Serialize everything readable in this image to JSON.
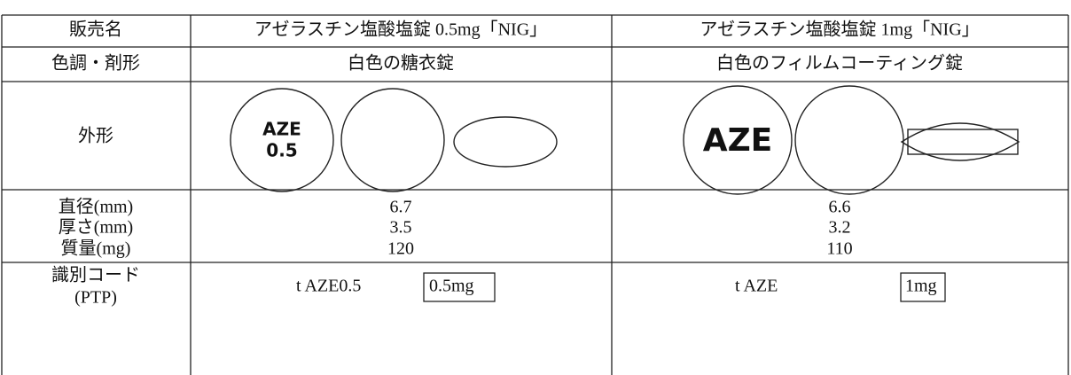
{
  "table": {
    "header": [
      "販売名",
      "アゼラスチン塩酸塩錠 0.5mg「NIG」",
      "アゼラスチン塩酸塩錠 1mg「NIG」"
    ],
    "color_form": {
      "label": "色調・剤形",
      "values": [
        "白色の糖衣錠",
        "白色のフィルムコーティング錠"
      ]
    },
    "shape": {
      "label": "外形",
      "engravings": [
        [
          "AZE",
          "0.5"
        ],
        [
          "AZE"
        ]
      ]
    },
    "specs": {
      "labels": [
        "直径(mm)",
        "厚さ(mm)",
        "質量(mg)"
      ],
      "values": [
        [
          6.7,
          3.5,
          120
        ],
        [
          6.6,
          3.2,
          110
        ]
      ]
    },
    "id_code": {
      "label": [
        "識別コード",
        "(PTP)"
      ],
      "codes": [
        "t AZE0.5",
        "t AZE"
      ],
      "boxed": [
        "0.5mg",
        "1mg"
      ]
    }
  }
}
